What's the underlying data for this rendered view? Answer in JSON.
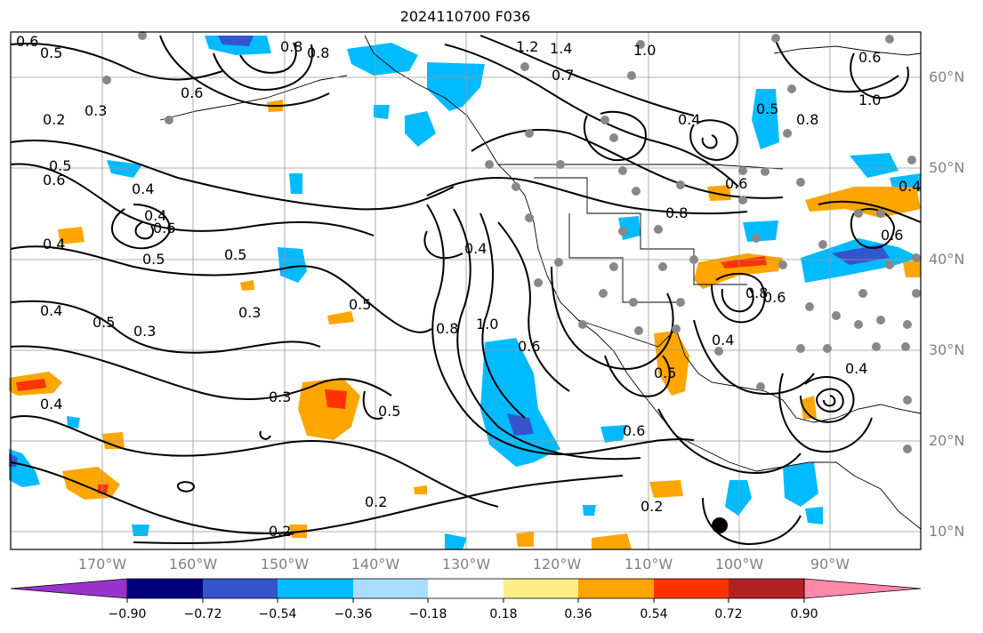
{
  "title": "2024110700 F036",
  "latitude_labels": [
    "60°N",
    "50°N",
    "40°N",
    "30°N",
    "20°N",
    "10°N"
  ],
  "longitude_labels": [
    "170°W",
    "160°W",
    "150°W",
    "140°W",
    "130°W",
    "120°W",
    "110°W",
    "100°W",
    "90°W"
  ],
  "colorbar": {
    "ticks": [
      "−0.90",
      "−0.72",
      "−0.54",
      "−0.36",
      "−0.18",
      "0.18",
      "0.36",
      "0.54",
      "0.72",
      "0.90"
    ],
    "colors": [
      "#9933cc",
      "#000080",
      "#3355cc",
      "#00bbff",
      "#aaddff",
      "#ffffff",
      "#ffee88",
      "#ffa500",
      "#ff3300",
      "#b22222",
      "#ff88aa"
    ]
  },
  "contour_labels": [
    "0.6",
    "0.5",
    "0.2",
    "0.3",
    "0.5",
    "0.6",
    "0.4",
    "0.4",
    "0.4",
    "0.6",
    "0.5",
    "0.5",
    "0.3",
    "0.3",
    "0.5",
    "0.4",
    "0.4",
    "0.3",
    "0.5",
    "0.2",
    "0.2",
    "0.8",
    "1.0",
    "1.2",
    "1.4",
    "1.0",
    "0.7",
    "0.6",
    "0.8",
    "0.4",
    "0.6",
    "0.4",
    "0.6",
    "0.8",
    "0.5",
    "0.8",
    "0.6",
    "0.6",
    "0.4",
    "0.8",
    "1.0",
    "0.6",
    "0.6",
    "0.5",
    "0.5",
    "0.2",
    "0.4",
    "0.8",
    "0.4"
  ]
}
